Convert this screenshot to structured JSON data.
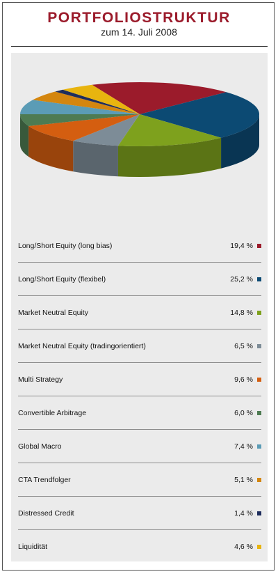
{
  "header": {
    "title": "PORTFOLIOSTRUKTUR",
    "subtitle": "zum 14. Juli 2008"
  },
  "chart_data": {
    "type": "pie",
    "title": "PORTFOLIOSTRUKTUR",
    "subtitle": "zum 14. Juli 2008",
    "categories": [
      "Long/Short Equity (long bias)",
      "Long/Short Equity (flexibel)",
      "Market Neutral Equity",
      "Market Neutral Equity (tradingorientiert)",
      "Multi Strategy",
      "Convertible Arbitrage",
      "Global Macro",
      "CTA Trendfolger",
      "Distressed Credit",
      "Liquidität"
    ],
    "values": [
      19.4,
      25.2,
      14.8,
      6.5,
      9.6,
      6.0,
      7.4,
      5.1,
      1.4,
      4.6
    ],
    "value_labels": [
      "19,4 %",
      "25,2 %",
      "14,8 %",
      "6,5 %",
      "9,6 %",
      "6,0 %",
      "7,4 %",
      "5,1 %",
      "1,4 %",
      "4,6 %"
    ],
    "colors": [
      "#9b1b2b",
      "#0c4a73",
      "#7ea11d",
      "#7d8c97",
      "#d45e10",
      "#4e7b52",
      "#5b9cb6",
      "#d4860f",
      "#1e2d5c",
      "#e8b40f"
    ],
    "style": "3d-pie",
    "legend_position": "below"
  }
}
